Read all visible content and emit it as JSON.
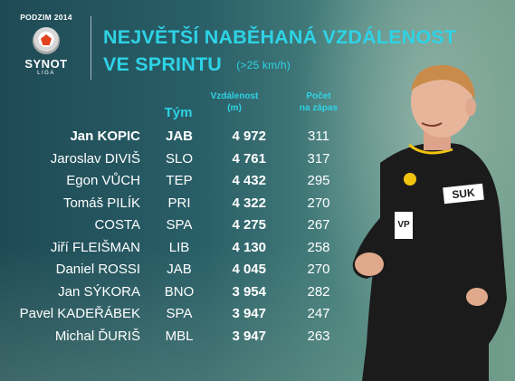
{
  "header": {
    "season": "PODZIM 2014",
    "brand": "SYNOT",
    "brand_sub": "LIGA",
    "title_line1": "NEJVĚTŠÍ NABĚHANÁ VZDÁLENOST",
    "title_line2": "VE SPRINTU",
    "title_note": "(>25 km/h)"
  },
  "columns": {
    "team": "Tým",
    "distance_line1": "Vzdálenost",
    "distance_line2": "(m)",
    "runs_line1": "Počet",
    "runs_line2": "na zápas"
  },
  "rows": [
    {
      "name": "Jan KOPIC",
      "team": "JAB",
      "distance": "4 972",
      "runs": "311"
    },
    {
      "name": "Jaroslav DIVIŠ",
      "team": "SLO",
      "distance": "4 761",
      "runs": "317"
    },
    {
      "name": "Egon VŮCH",
      "team": "TEP",
      "distance": "4 432",
      "runs": "295"
    },
    {
      "name": "Tomáš PILÍK",
      "team": "PRI",
      "distance": "4 322",
      "runs": "270"
    },
    {
      "name": "COSTA",
      "team": "SPA",
      "distance": "4 275",
      "runs": "267"
    },
    {
      "name": "Jiří FLEIŠMAN",
      "team": "LIB",
      "distance": "4 130",
      "runs": "258"
    },
    {
      "name": "Daniel ROSSI",
      "team": "JAB",
      "distance": "4 045",
      "runs": "270"
    },
    {
      "name": "Jan SÝKORA",
      "team": "BNO",
      "distance": "3 954",
      "runs": "282"
    },
    {
      "name": "Pavel KADEŘÁBEK",
      "team": "SPA",
      "distance": "3 947",
      "runs": "247"
    },
    {
      "name": "Michal ĎURIŠ",
      "team": "MBL",
      "distance": "3 947",
      "runs": "263"
    }
  ],
  "player_shirt": {
    "sponsor": "SUK",
    "sleeve": "VP"
  },
  "colors": {
    "accent": "#2ed3e6",
    "text": "#ffffff",
    "shirt": "#1b1b1b"
  }
}
